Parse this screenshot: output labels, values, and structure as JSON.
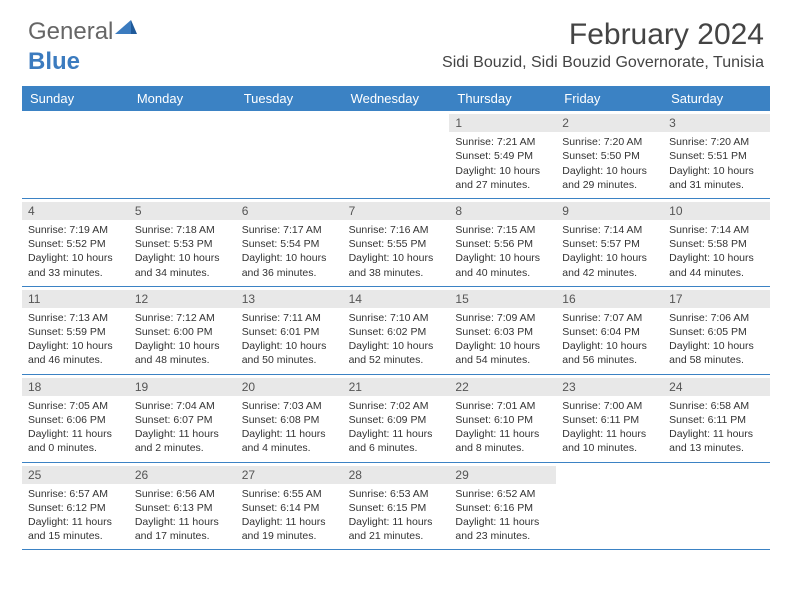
{
  "logo": {
    "text1": "General",
    "text2": "Blue"
  },
  "title": "February 2024",
  "location": "Sidi Bouzid, Sidi Bouzid Governorate, Tunisia",
  "header_bg": "#3b82c4",
  "header_fg": "#ffffff",
  "daynum_bg": "#e8e8e8",
  "border_color": "#3b82c4",
  "text_color": "#333333",
  "dayNames": [
    "Sunday",
    "Monday",
    "Tuesday",
    "Wednesday",
    "Thursday",
    "Friday",
    "Saturday"
  ],
  "weeks": [
    [
      null,
      null,
      null,
      null,
      {
        "n": "1",
        "sr": "7:21 AM",
        "ss": "5:49 PM",
        "dl": "10 hours and 27 minutes."
      },
      {
        "n": "2",
        "sr": "7:20 AM",
        "ss": "5:50 PM",
        "dl": "10 hours and 29 minutes."
      },
      {
        "n": "3",
        "sr": "7:20 AM",
        "ss": "5:51 PM",
        "dl": "10 hours and 31 minutes."
      }
    ],
    [
      {
        "n": "4",
        "sr": "7:19 AM",
        "ss": "5:52 PM",
        "dl": "10 hours and 33 minutes."
      },
      {
        "n": "5",
        "sr": "7:18 AM",
        "ss": "5:53 PM",
        "dl": "10 hours and 34 minutes."
      },
      {
        "n": "6",
        "sr": "7:17 AM",
        "ss": "5:54 PM",
        "dl": "10 hours and 36 minutes."
      },
      {
        "n": "7",
        "sr": "7:16 AM",
        "ss": "5:55 PM",
        "dl": "10 hours and 38 minutes."
      },
      {
        "n": "8",
        "sr": "7:15 AM",
        "ss": "5:56 PM",
        "dl": "10 hours and 40 minutes."
      },
      {
        "n": "9",
        "sr": "7:14 AM",
        "ss": "5:57 PM",
        "dl": "10 hours and 42 minutes."
      },
      {
        "n": "10",
        "sr": "7:14 AM",
        "ss": "5:58 PM",
        "dl": "10 hours and 44 minutes."
      }
    ],
    [
      {
        "n": "11",
        "sr": "7:13 AM",
        "ss": "5:59 PM",
        "dl": "10 hours and 46 minutes."
      },
      {
        "n": "12",
        "sr": "7:12 AM",
        "ss": "6:00 PM",
        "dl": "10 hours and 48 minutes."
      },
      {
        "n": "13",
        "sr": "7:11 AM",
        "ss": "6:01 PM",
        "dl": "10 hours and 50 minutes."
      },
      {
        "n": "14",
        "sr": "7:10 AM",
        "ss": "6:02 PM",
        "dl": "10 hours and 52 minutes."
      },
      {
        "n": "15",
        "sr": "7:09 AM",
        "ss": "6:03 PM",
        "dl": "10 hours and 54 minutes."
      },
      {
        "n": "16",
        "sr": "7:07 AM",
        "ss": "6:04 PM",
        "dl": "10 hours and 56 minutes."
      },
      {
        "n": "17",
        "sr": "7:06 AM",
        "ss": "6:05 PM",
        "dl": "10 hours and 58 minutes."
      }
    ],
    [
      {
        "n": "18",
        "sr": "7:05 AM",
        "ss": "6:06 PM",
        "dl": "11 hours and 0 minutes."
      },
      {
        "n": "19",
        "sr": "7:04 AM",
        "ss": "6:07 PM",
        "dl": "11 hours and 2 minutes."
      },
      {
        "n": "20",
        "sr": "7:03 AM",
        "ss": "6:08 PM",
        "dl": "11 hours and 4 minutes."
      },
      {
        "n": "21",
        "sr": "7:02 AM",
        "ss": "6:09 PM",
        "dl": "11 hours and 6 minutes."
      },
      {
        "n": "22",
        "sr": "7:01 AM",
        "ss": "6:10 PM",
        "dl": "11 hours and 8 minutes."
      },
      {
        "n": "23",
        "sr": "7:00 AM",
        "ss": "6:11 PM",
        "dl": "11 hours and 10 minutes."
      },
      {
        "n": "24",
        "sr": "6:58 AM",
        "ss": "6:11 PM",
        "dl": "11 hours and 13 minutes."
      }
    ],
    [
      {
        "n": "25",
        "sr": "6:57 AM",
        "ss": "6:12 PM",
        "dl": "11 hours and 15 minutes."
      },
      {
        "n": "26",
        "sr": "6:56 AM",
        "ss": "6:13 PM",
        "dl": "11 hours and 17 minutes."
      },
      {
        "n": "27",
        "sr": "6:55 AM",
        "ss": "6:14 PM",
        "dl": "11 hours and 19 minutes."
      },
      {
        "n": "28",
        "sr": "6:53 AM",
        "ss": "6:15 PM",
        "dl": "11 hours and 21 minutes."
      },
      {
        "n": "29",
        "sr": "6:52 AM",
        "ss": "6:16 PM",
        "dl": "11 hours and 23 minutes."
      },
      null,
      null
    ]
  ],
  "labels": {
    "sunrise": "Sunrise:",
    "sunset": "Sunset:",
    "daylight": "Daylight:"
  }
}
